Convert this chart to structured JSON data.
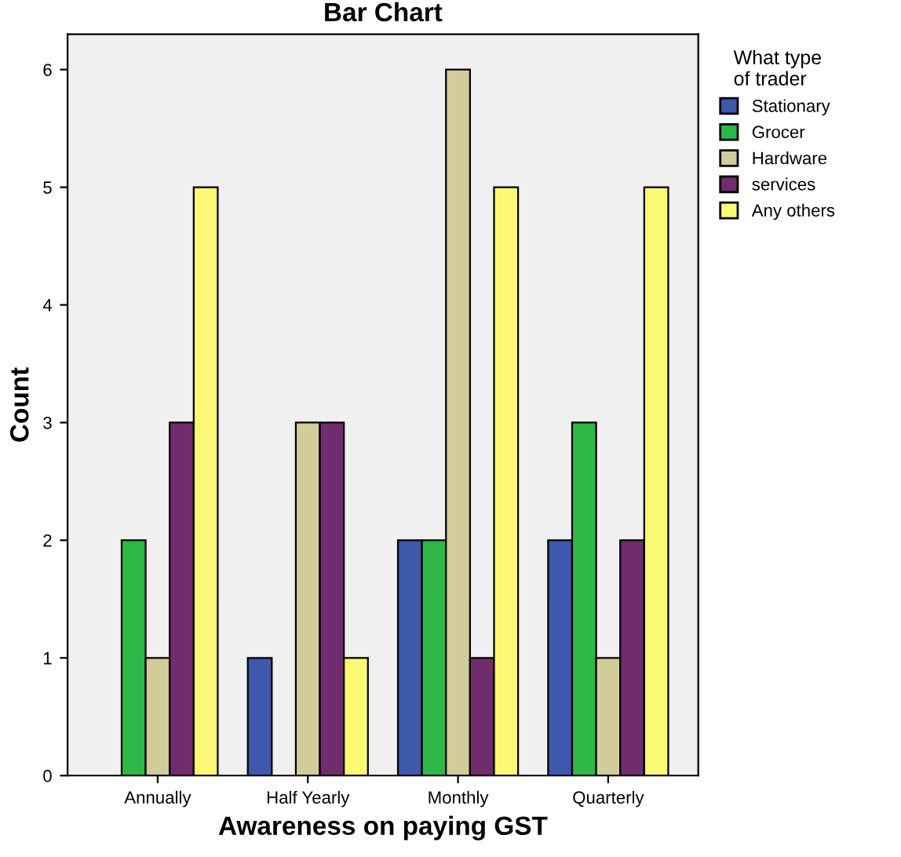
{
  "chart_data": {
    "type": "bar",
    "title": "Bar Chart",
    "xlabel": "Awareness on paying GST",
    "ylabel": "Count",
    "legend_title": "What type\nof trader",
    "categories": [
      "Annually",
      "Half Yearly",
      "Monthly",
      "Quarterly"
    ],
    "series": [
      {
        "name": "Stationary",
        "color": "#3e58ac",
        "values": [
          null,
          1,
          2,
          2
        ]
      },
      {
        "name": "Grocer",
        "color": "#2eb848",
        "values": [
          2,
          null,
          2,
          3
        ]
      },
      {
        "name": "Hardware",
        "color": "#d2cc9a",
        "values": [
          1,
          3,
          6,
          1
        ]
      },
      {
        "name": "services",
        "color": "#702c6e",
        "values": [
          3,
          3,
          1,
          2
        ]
      },
      {
        "name": "Any others",
        "color": "#fbf873",
        "values": [
          5,
          1,
          5,
          5
        ]
      }
    ],
    "ylim": [
      0,
      6.3
    ],
    "yticks": [
      0,
      1,
      2,
      3,
      4,
      5,
      6
    ],
    "grid": false,
    "legend": "right"
  }
}
